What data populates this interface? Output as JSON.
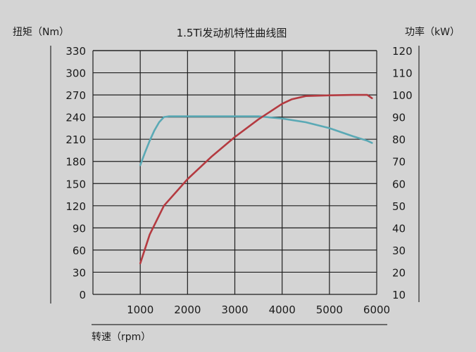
{
  "chart_data": {
    "type": "line",
    "title": "1.5Ti发动机特性曲线图",
    "xlabel": "转速（rpm）",
    "ylabel_left": "扭矩（Nm）",
    "ylabel_right": "功率（kW）",
    "x_ticks": [
      "1000",
      "2000",
      "3000",
      "4000",
      "5000",
      "6000"
    ],
    "y_left_ticks": [
      "0",
      "30",
      "60",
      "90",
      "120",
      "150",
      "180",
      "210",
      "240",
      "270",
      "300",
      "330"
    ],
    "y_right_ticks": [
      "10",
      "20",
      "30",
      "40",
      "50",
      "60",
      "70",
      "80",
      "90",
      "100",
      "110",
      "120"
    ],
    "xlim": [
      0,
      6000
    ],
    "ylim_left": [
      0,
      330
    ],
    "ylim_right": [
      10,
      120
    ],
    "grid": true,
    "colors": {
      "torque": "#5aa9b5",
      "power": "#b43a40"
    },
    "series": [
      {
        "key": "torque",
        "axis": "left",
        "x": [
          1000,
          1100,
          1200,
          1300,
          1400,
          1500,
          1600,
          2000,
          3000,
          3500,
          4000,
          4500,
          5000,
          5500,
          5800,
          5900
        ],
        "y": [
          175,
          192,
          208,
          222,
          233,
          240,
          241,
          241,
          241,
          241,
          238,
          233,
          225,
          214,
          208,
          205
        ]
      },
      {
        "key": "power",
        "axis": "right",
        "x": [
          1000,
          1200,
          1500,
          2000,
          2500,
          3000,
          3500,
          4000,
          4200,
          4500,
          5000,
          5500,
          5800,
          5900
        ],
        "y": [
          24,
          37,
          50,
          62,
          72,
          81,
          89,
          96,
          98,
          99.5,
          99.8,
          100,
          100,
          98.5
        ]
      }
    ]
  }
}
